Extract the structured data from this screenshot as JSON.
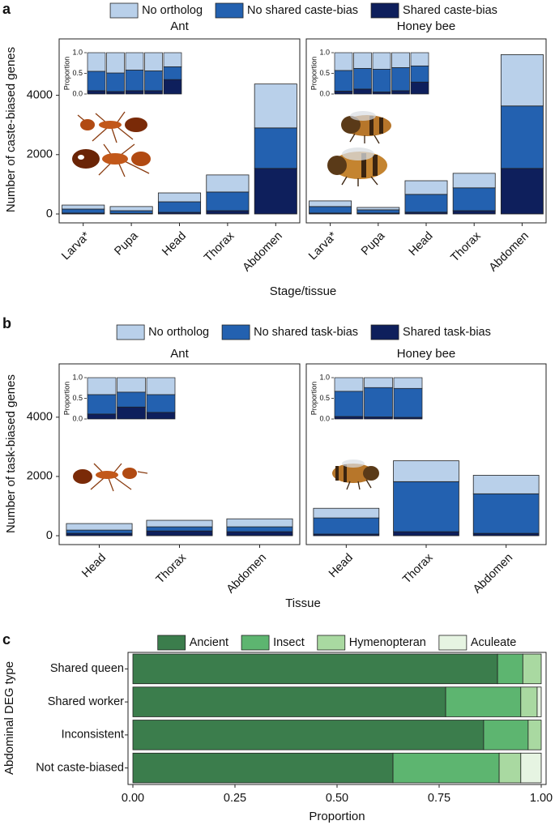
{
  "chart_data": [
    {
      "type": "bar",
      "stacked": true,
      "panel": "a",
      "ylabel": "Number of caste-biased genes",
      "xlabel": "Stage/tissue",
      "categories": [
        "Larva*",
        "Pupa",
        "Head",
        "Thorax",
        "Abdomen"
      ],
      "series": [
        {
          "name": "No ortholog",
          "color": "#b9d0ea"
        },
        {
          "name": "No shared caste-bias",
          "color": "#2361b0"
        },
        {
          "name": "Shared caste-bias",
          "color": "#0e1f5c"
        }
      ],
      "ylim": [
        -300,
        5900
      ],
      "yticks": [
        0,
        2000,
        4000
      ],
      "inset_ylabel": "Proportion",
      "inset_ylim": [
        0,
        1
      ],
      "inset_yticks": [
        {
          "value": 0,
          "label": "0.0"
        },
        0.5,
        {
          "value": 1,
          "label": "1.0"
        }
      ],
      "facets": [
        {
          "title": "Ant",
          "values": [
            [
              135,
              140,
              300,
              575,
              1480
            ],
            [
              135,
              90,
              355,
              630,
              1365
            ],
            [
              30,
              20,
              55,
              110,
              1535
            ]
          ],
          "inset": [
            [
              0.45,
              0.49,
              0.42,
              0.44,
              0.34
            ],
            [
              0.47,
              0.45,
              0.5,
              0.48,
              0.31
            ],
            [
              0.08,
              0.06,
              0.08,
              0.08,
              0.35
            ]
          ]
        },
        {
          "title": "Honey bee",
          "values": [
            [
              190,
              80,
              460,
              490,
              1730
            ],
            [
              220,
              110,
              600,
              770,
              2105
            ],
            [
              30,
              30,
              60,
              110,
              1535
            ]
          ],
          "inset": [
            [
              0.43,
              0.38,
              0.4,
              0.36,
              0.32
            ],
            [
              0.5,
              0.5,
              0.55,
              0.56,
              0.39
            ],
            [
              0.07,
              0.12,
              0.05,
              0.08,
              0.29
            ]
          ]
        }
      ]
    },
    {
      "type": "bar",
      "stacked": true,
      "panel": "b",
      "ylabel": "Number of task-biased genes",
      "xlabel": "Tissue",
      "categories": [
        "Head",
        "Thorax",
        "Abdomen"
      ],
      "series": [
        {
          "name": "No ortholog",
          "color": "#b9d0ea"
        },
        {
          "name": "No shared task-bias",
          "color": "#2361b0"
        },
        {
          "name": "Shared task-bias",
          "color": "#0e1f5c"
        }
      ],
      "ylim": [
        -300,
        5800
      ],
      "yticks": [
        0,
        2000,
        4000
      ],
      "inset_ylabel": "Proportion",
      "inset_ylim": [
        0,
        1
      ],
      "inset_yticks": [
        {
          "value": 0,
          "label": "0.0"
        },
        0.5,
        {
          "value": 1,
          "label": "1.0"
        }
      ],
      "facets": [
        {
          "title": "Ant",
          "values": [
            [
              220,
              220,
              270
            ],
            [
              110,
              140,
              165
            ],
            [
              80,
              160,
              135
            ]
          ],
          "inset": [
            [
              0.41,
              0.35,
              0.41
            ],
            [
              0.47,
              0.36,
              0.43
            ],
            [
              0.12,
              0.29,
              0.16
            ]
          ]
        },
        {
          "title": "Honey bee",
          "values": [
            [
              325,
              705,
              625
            ],
            [
              545,
              1690,
              1335
            ],
            [
              55,
              135,
              80
            ]
          ],
          "inset": [
            [
              0.33,
              0.24,
              0.26
            ],
            [
              0.61,
              0.71,
              0.7
            ],
            [
              0.06,
              0.05,
              0.04
            ]
          ]
        }
      ]
    },
    {
      "type": "bar",
      "orientation": "horizontal",
      "stacked": true,
      "panel": "c",
      "ylabel": "Abdominal DEG type",
      "xlabel": "Proportion",
      "categories": [
        "Shared queen",
        "Shared worker",
        "Inconsistent",
        "Not caste-biased"
      ],
      "series": [
        {
          "name": "Ancient",
          "color": "#3b7d4c",
          "values": [
            0.893,
            0.766,
            0.859,
            0.637
          ]
        },
        {
          "name": "Insect",
          "color": "#5db570",
          "values": [
            0.062,
            0.184,
            0.109,
            0.26
          ]
        },
        {
          "name": "Hymenopteran",
          "color": "#a9d9a1",
          "values": [
            0.045,
            0.04,
            0.032,
            0.053
          ]
        },
        {
          "name": "Aculeate",
          "color": "#e6f4e2",
          "values": [
            0,
            0.01,
            0,
            0.05
          ]
        }
      ],
      "xlim": [
        0,
        1
      ],
      "xticks": [
        {
          "value": 0,
          "label": "0.00"
        },
        0.25,
        {
          "value": 0.5,
          "label": "0.50"
        },
        0.75,
        {
          "value": 1,
          "label": "1.00"
        }
      ]
    }
  ]
}
